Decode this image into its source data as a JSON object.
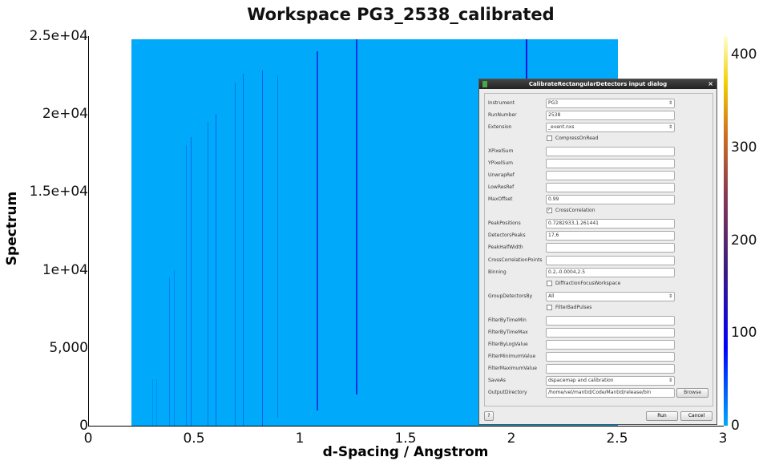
{
  "plot": {
    "title": "Workspace PG3_2538_calibrated",
    "xlabel": "d-Spacing / Angstrom",
    "ylabel": "Spectrum",
    "x_ticks": [
      "0",
      "0.5",
      "1",
      "1.5",
      "2",
      "2.5",
      "3"
    ],
    "x_tick_values": [
      0,
      0.5,
      1,
      1.5,
      2,
      2.5,
      3
    ],
    "y_ticks": [
      "0",
      "5,000",
      "1e+04",
      "1.5e+04",
      "2e+04",
      "2.5e+04"
    ],
    "y_tick_values": [
      0,
      5000,
      10000,
      15000,
      20000,
      25000
    ],
    "xlim": [
      0,
      3
    ],
    "ylim": [
      0,
      25000
    ],
    "data_x_range": [
      0.2,
      2.5
    ],
    "data_y_max": 24800,
    "colorbar_ticks": [
      "0",
      "100",
      "200",
      "300",
      "400"
    ],
    "colorbar_values": [
      0,
      100,
      200,
      300,
      400
    ],
    "colorbar_max": 420,
    "background_color": "#00a9fa",
    "peaks": [
      {
        "d": 2.065,
        "ymin": 22200,
        "ymax": 24800,
        "strength": 1
      },
      {
        "d": 1.262,
        "ymin": 2000,
        "ymax": 24800,
        "strength": 0.8
      },
      {
        "d": 1.077,
        "ymin": 1000,
        "ymax": 24000,
        "strength": 0.7
      },
      {
        "d": 0.89,
        "ymin": 500,
        "ymax": 22500,
        "strength": 0.3
      },
      {
        "d": 0.818,
        "ymin": 0,
        "ymax": 22800,
        "strength": 0.5
      },
      {
        "d": 0.728,
        "ymin": 0,
        "ymax": 22600,
        "strength": 0.4
      },
      {
        "d": 0.69,
        "ymin": 0,
        "ymax": 22000,
        "strength": 0.35
      },
      {
        "d": 0.6,
        "ymin": 0,
        "ymax": 20000,
        "strength": 0.45
      },
      {
        "d": 0.56,
        "ymin": 0,
        "ymax": 19500,
        "strength": 0.35
      },
      {
        "d": 0.48,
        "ymin": 0,
        "ymax": 18500,
        "strength": 0.4
      },
      {
        "d": 0.46,
        "ymin": 0,
        "ymax": 18000,
        "strength": 0.3
      },
      {
        "d": 0.4,
        "ymin": 0,
        "ymax": 10000,
        "strength": 0.25
      },
      {
        "d": 0.38,
        "ymin": 0,
        "ymax": 9500,
        "strength": 0.25
      },
      {
        "d": 0.32,
        "ymin": 0,
        "ymax": 3000,
        "strength": 0.2
      },
      {
        "d": 0.3,
        "ymin": 0,
        "ymax": 3000,
        "strength": 0.2
      }
    ]
  },
  "dialog": {
    "title": "CalibrateRectangularDetectors input dialog",
    "close": "×",
    "fields": [
      {
        "label": "Instrument",
        "type": "select",
        "value": "PG3"
      },
      {
        "label": "RunNumber",
        "type": "text",
        "value": "2538"
      },
      {
        "label": "Extension",
        "type": "select",
        "value": "_event.nxs"
      },
      {
        "label": "CompressOnRead",
        "type": "check",
        "checked": false
      },
      {
        "label": "XPixelSum",
        "type": "text",
        "value": ""
      },
      {
        "label": "YPixelSum",
        "type": "text",
        "value": ""
      },
      {
        "label": "UnwrapRef",
        "type": "text",
        "value": ""
      },
      {
        "label": "LowResRef",
        "type": "text",
        "value": ""
      },
      {
        "label": "MaxOffset",
        "type": "text",
        "value": "0.99"
      },
      {
        "label": "CrossCorrelation",
        "type": "check",
        "checked": true
      },
      {
        "label": "PeakPositions",
        "type": "text",
        "value": "0.7282933,1.261441"
      },
      {
        "label": "DetectorsPeaks",
        "type": "text",
        "value": "17,6"
      },
      {
        "label": "PeakHalfWidth",
        "type": "text",
        "value": ""
      },
      {
        "label": "CrossCorrelationPoints",
        "type": "text",
        "value": ""
      },
      {
        "label": "Binning",
        "type": "text",
        "value": "0.2,-0.0004,2.5"
      },
      {
        "label": "DiffractionFocusWorkspace",
        "type": "check",
        "checked": false
      },
      {
        "label": "GroupDetectorsBy",
        "type": "select",
        "value": "All"
      },
      {
        "label": "FilterBadPulses",
        "type": "check",
        "checked": false
      },
      {
        "label": "FilterByTimeMin",
        "type": "text",
        "value": ""
      },
      {
        "label": "FilterByTimeMax",
        "type": "text",
        "value": ""
      },
      {
        "label": "FilterByLogValue",
        "type": "text",
        "value": ""
      },
      {
        "label": "FilterMinimumValue",
        "type": "text",
        "value": ""
      },
      {
        "label": "FilterMaximumValue",
        "type": "text",
        "value": ""
      },
      {
        "label": "SaveAs",
        "type": "select",
        "value": "dspacemap and calibration"
      },
      {
        "label": "OutputDirectory",
        "type": "text",
        "value": "/home/vel/mantid/Code/Mantid/release/bin"
      }
    ],
    "browse": "Browse",
    "help": "?",
    "run": "Run",
    "cancel": "Cancel"
  }
}
